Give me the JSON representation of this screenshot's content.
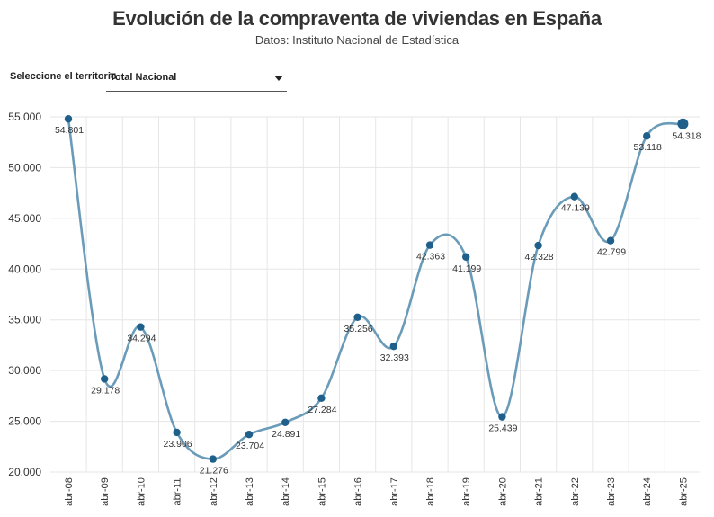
{
  "header": {
    "title": "Evolución de la compraventa de viviendas en España",
    "subtitle": "Datos: Instituto Nacional de Estadística"
  },
  "selector": {
    "label": "Seleccione el territorio",
    "value": "Total Nacional"
  },
  "colors": {
    "line": "#6a9bb8",
    "point": "#1f5f8b",
    "grid": "#e6e6e6"
  },
  "chart_data": {
    "type": "line",
    "title": "Evolución de la compraventa de viviendas en España",
    "subtitle": "Datos: Instituto Nacional de Estadística",
    "xlabel": "",
    "ylabel": "",
    "categories": [
      "abr-08",
      "abr-09",
      "abr-10",
      "abr-11",
      "abr-12",
      "abr-13",
      "abr-14",
      "abr-15",
      "abr-16",
      "abr-17",
      "abr-18",
      "abr-19",
      "abr-20",
      "abr-21",
      "abr-22",
      "abr-23",
      "abr-24",
      "abr-25"
    ],
    "series": [
      {
        "values": [
          54801,
          29178,
          34294,
          23906,
          21276,
          23704,
          24891,
          27284,
          35256,
          32393,
          42363,
          41199,
          25439,
          42328,
          47139,
          42799,
          53118,
          54318
        ],
        "labels": [
          "54.801",
          "29.178",
          "34.294",
          "23.906",
          "21.276",
          "23.704",
          "24.891",
          "27.284",
          "35.256",
          "32.393",
          "42.363",
          "41.199",
          "25.439",
          "42.328",
          "47.139",
          "42.799",
          "53.118",
          "54.318"
        ]
      }
    ],
    "ylim": [
      20000,
      55000
    ],
    "yticks": [
      20000,
      25000,
      30000,
      35000,
      40000,
      45000,
      50000,
      55000
    ],
    "ytick_labels": [
      "20.000",
      "25.000",
      "30.000",
      "35.000",
      "40.000",
      "45.000",
      "50.000",
      "55.000"
    ],
    "grid": true,
    "legend": "none"
  }
}
